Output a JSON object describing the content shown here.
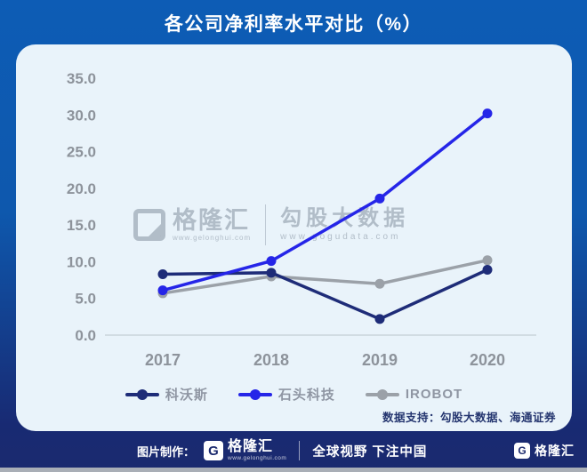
{
  "chart_data": {
    "type": "line",
    "title": "各公司净利率水平对比（%）",
    "x": [
      "2017",
      "2018",
      "2019",
      "2020"
    ],
    "series": [
      {
        "name": "科沃斯",
        "color": "#1e2c78",
        "values": [
          8.3,
          8.5,
          2.2,
          8.9
        ]
      },
      {
        "name": "石头科技",
        "color": "#2525e8",
        "values": [
          6.1,
          10.1,
          18.6,
          30.2
        ]
      },
      {
        "name": "IROBOT",
        "color": "#9ba1a8",
        "values": [
          5.7,
          8.0,
          7.0,
          10.2
        ]
      }
    ],
    "xlabel": "",
    "ylabel": "",
    "ylim": [
      0,
      35
    ],
    "ytick_step": 5,
    "grid": false,
    "legend_position": "bottom"
  },
  "watermark": {
    "logo_letter": "G",
    "logo_name": "格隆汇",
    "logo_url": "www.gelonghui.com",
    "right_name": "勾股大数据",
    "right_url": "www.gogudata.com"
  },
  "source_note": "数据支持：勾股大数据、海通证券",
  "footer": {
    "made_by_label": "图片制作：",
    "logo_letter": "G",
    "logo_name": "格隆汇",
    "logo_url": "www.gelonghui.com",
    "slogan": "全球视野 下注中国",
    "right_logo_letter": "G",
    "right_logo_name": "格隆汇"
  },
  "colors": {
    "background_top": "#0d5cb5",
    "background_bottom": "#1b2a6e",
    "panel": "#e9f3fa",
    "axis_text": "#8d939b",
    "axis_line": "#c9d4da",
    "source_text": "#24356f"
  }
}
